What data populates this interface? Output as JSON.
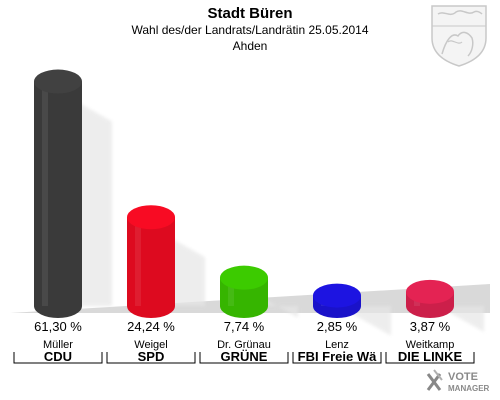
{
  "header": {
    "title": "Stadt Büren",
    "subtitle": "Wahl des/der Landrats/Landrätin 25.05.2014",
    "location": "Ahden"
  },
  "branding": {
    "logo_text": "VOTE MANAGER"
  },
  "chart_data": {
    "type": "bar",
    "ylim": [
      0,
      65
    ],
    "grid": false,
    "categories": [
      "Müller",
      "Weigel",
      "Dr. Grünau",
      "Lenz",
      "Weitkamp"
    ],
    "parties": [
      "CDU",
      "SPD",
      "GRÜNE",
      "FBI Freie Wä",
      "DIE LINKE"
    ],
    "values": [
      61.3,
      24.24,
      7.74,
      2.85,
      3.87
    ],
    "value_labels": [
      "61,30 %",
      "24,24 %",
      "7,74 %",
      "2,85 %",
      "3,87 %"
    ],
    "colors": [
      "#3a3a3a",
      "#dd0a1f",
      "#36b500",
      "#1a12c9",
      "#cc1f4a"
    ]
  }
}
